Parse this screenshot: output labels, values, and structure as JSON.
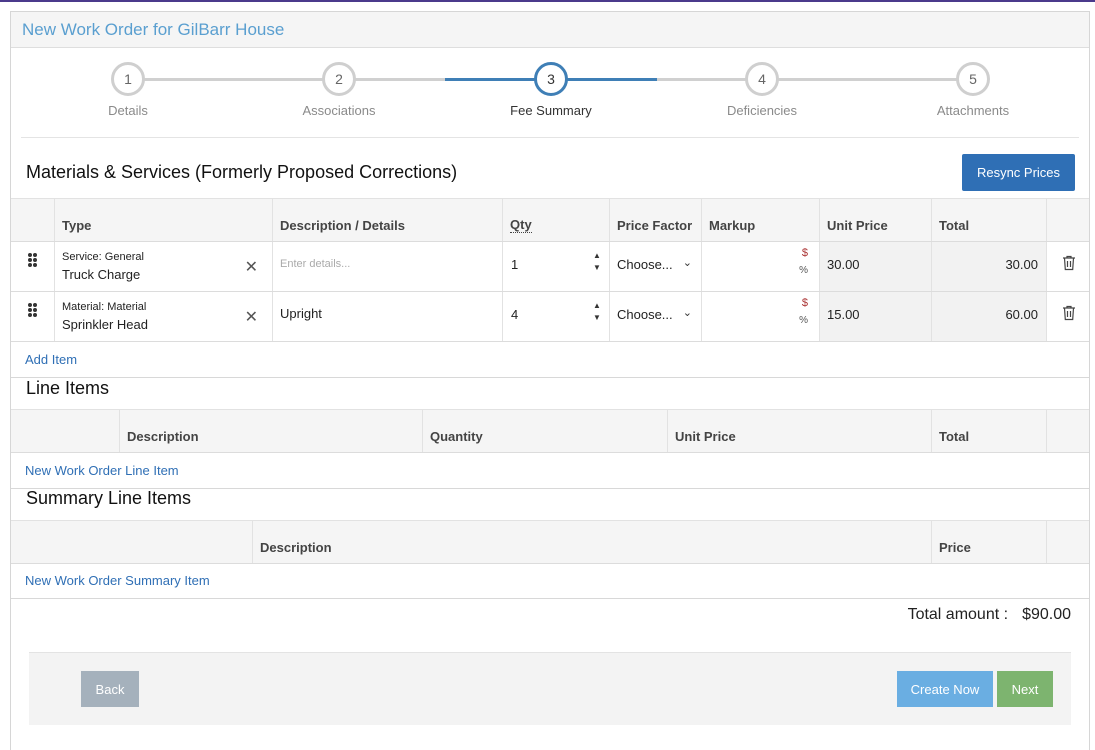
{
  "page": {
    "title": "New Work Order for GilBarr House"
  },
  "stepper": {
    "steps": [
      {
        "num": "1",
        "label": "Details"
      },
      {
        "num": "2",
        "label": "Associations"
      },
      {
        "num": "3",
        "label": "Fee Summary"
      },
      {
        "num": "4",
        "label": "Deficiencies"
      },
      {
        "num": "5",
        "label": "Attachments"
      }
    ],
    "active_step": "3"
  },
  "materials": {
    "title": "Materials & Services (Formerly Proposed Corrections)",
    "resync_label": "Resync Prices",
    "columns": [
      "Type",
      "Description / Details",
      "Qty",
      "Price Factor",
      "Markup",
      "Unit Price",
      "Total"
    ],
    "rows": [
      {
        "type_category": "Service: General",
        "type_name": "Truck Charge",
        "description": "",
        "description_placeholder": "Enter details...",
        "qty": "1",
        "price_factor": "Choose...",
        "unit_price": "30.00",
        "total": "30.00"
      },
      {
        "type_category": "Material: Material",
        "type_name": "Sprinkler Head",
        "description": "Upright",
        "description_placeholder": "",
        "qty": "4",
        "price_factor": "Choose...",
        "unit_price": "15.00",
        "total": "60.00"
      }
    ],
    "markup_dollar": "$",
    "markup_percent": "%",
    "add_item_label": "Add Item"
  },
  "line_items": {
    "title": "Line Items",
    "columns": [
      "Description",
      "Quantity",
      "Unit Price",
      "Total"
    ],
    "new_link": "New Work Order Line Item"
  },
  "summary_items": {
    "title": "Summary Line Items",
    "columns": [
      "Description",
      "Price"
    ],
    "new_link": "New Work Order Summary Item"
  },
  "totals": {
    "label": "Total amount :",
    "value": "$90.00"
  },
  "footer": {
    "back_label": "Back",
    "create_label": "Create Now",
    "next_label": "Next"
  },
  "icons": {
    "drag": "drag-handle-icon",
    "clear": "close-icon",
    "delete": "trash-icon",
    "dropdown": "chevron-down-icon"
  }
}
